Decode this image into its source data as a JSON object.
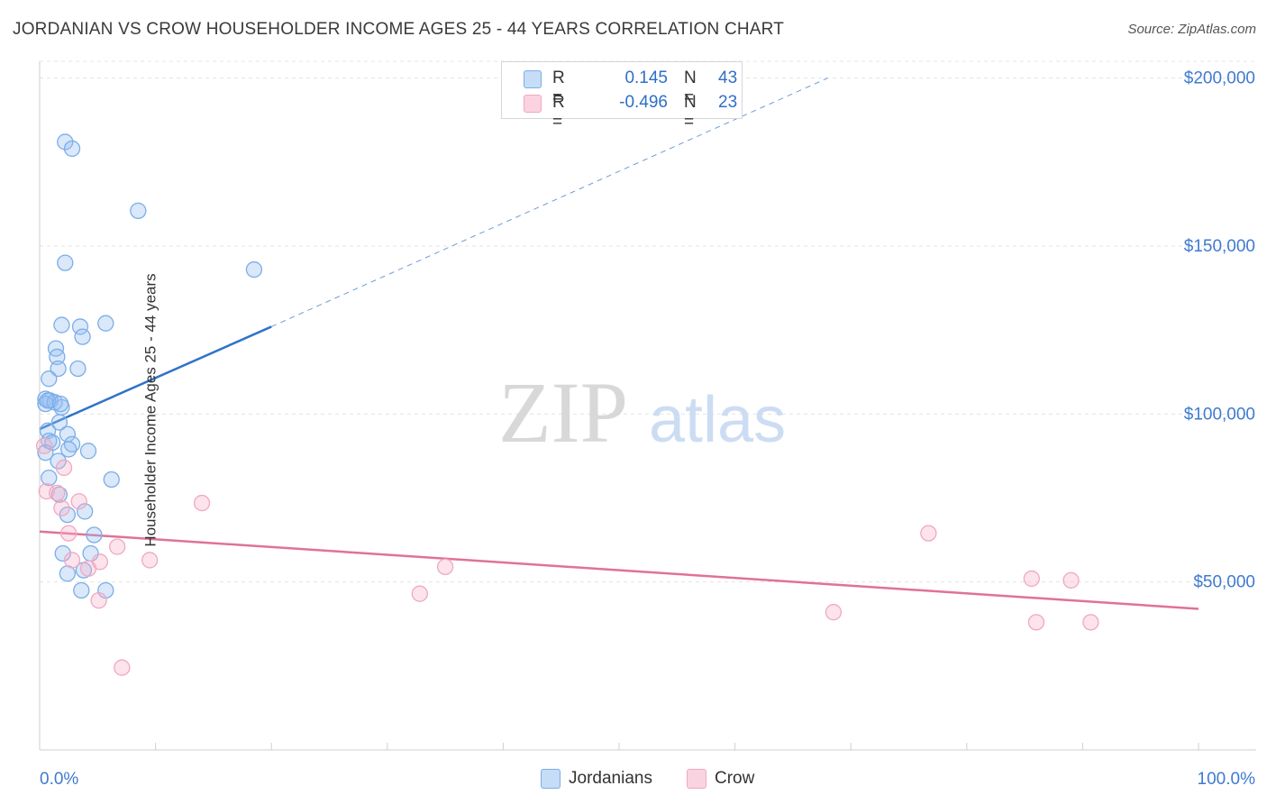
{
  "header": {
    "title": "JORDANIAN VS CROW HOUSEHOLDER INCOME AGES 25 - 44 YEARS CORRELATION CHART",
    "source": "Source: ZipAtlas.com"
  },
  "watermark": {
    "zip": "ZIP",
    "atlas": "atlas"
  },
  "legend_stats": [
    {
      "r_label": "R =",
      "r_value": "0.145",
      "n_label": "N =",
      "n_value": "43",
      "color": "#7aaee8"
    },
    {
      "r_label": "R =",
      "r_value": "-0.496",
      "n_label": "N =",
      "n_value": "23",
      "color": "#f0a8c0"
    }
  ],
  "chart_data": {
    "type": "scatter",
    "title": "JORDANIAN VS CROW HOUSEHOLDER INCOME AGES 25 - 44 YEARS CORRELATION CHART",
    "xlabel": "",
    "ylabel": "Householder Income Ages 25 - 44 years",
    "x_tick_labels": [
      "0.0%",
      "100.0%"
    ],
    "y_tick_labels": [
      "$50,000",
      "$100,000",
      "$150,000",
      "$200,000"
    ],
    "y_ticks": [
      50000,
      100000,
      150000,
      200000
    ],
    "xlim": [
      0,
      100
    ],
    "ylim": [
      0,
      205000
    ],
    "grid": true,
    "legend_position": "bottom",
    "colors": {
      "Jordanians": "#7aaee8",
      "Crow": "#f0a8c0",
      "jordanians_trend": "#2f73c9",
      "crow_trend": "#e0719a",
      "tick_label": "#3f7ad0"
    },
    "series": [
      {
        "name": "Jordanians",
        "points": [
          [
            2.2,
            181000
          ],
          [
            2.8,
            179000
          ],
          [
            8.5,
            160500
          ],
          [
            18.5,
            143000
          ],
          [
            2.2,
            145000
          ],
          [
            1.9,
            126500
          ],
          [
            3.5,
            126000
          ],
          [
            5.7,
            127000
          ],
          [
            3.7,
            123000
          ],
          [
            1.4,
            119500
          ],
          [
            1.5,
            117000
          ],
          [
            1.6,
            113500
          ],
          [
            3.3,
            113500
          ],
          [
            0.8,
            110500
          ],
          [
            0.5,
            104500
          ],
          [
            0.9,
            104000
          ],
          [
            0.5,
            103000
          ],
          [
            1.3,
            103500
          ],
          [
            1.9,
            102000
          ],
          [
            1.7,
            97500
          ],
          [
            0.7,
            95000
          ],
          [
            2.4,
            94000
          ],
          [
            0.8,
            92000
          ],
          [
            2.8,
            91000
          ],
          [
            1.1,
            91500
          ],
          [
            0.5,
            88500
          ],
          [
            2.5,
            89500
          ],
          [
            4.2,
            89000
          ],
          [
            1.6,
            86000
          ],
          [
            0.8,
            81000
          ],
          [
            6.2,
            80500
          ],
          [
            1.7,
            76000
          ],
          [
            3.9,
            71000
          ],
          [
            2.4,
            70000
          ],
          [
            4.7,
            64000
          ],
          [
            2.0,
            58500
          ],
          [
            4.4,
            58500
          ],
          [
            2.4,
            52500
          ],
          [
            3.8,
            53500
          ],
          [
            3.6,
            47500
          ],
          [
            5.7,
            47500
          ],
          [
            0.7,
            104000
          ],
          [
            1.8,
            103000
          ]
        ]
      },
      {
        "name": "Crow",
        "points": [
          [
            0.4,
            90500
          ],
          [
            2.1,
            84000
          ],
          [
            0.6,
            77000
          ],
          [
            1.5,
            76500
          ],
          [
            3.4,
            74000
          ],
          [
            14.0,
            73500
          ],
          [
            1.9,
            72000
          ],
          [
            2.5,
            64500
          ],
          [
            6.7,
            60500
          ],
          [
            2.8,
            56500
          ],
          [
            9.5,
            56500
          ],
          [
            5.2,
            56000
          ],
          [
            4.2,
            54000
          ],
          [
            35.0,
            54500
          ],
          [
            32.8,
            46500
          ],
          [
            5.1,
            44500
          ],
          [
            76.7,
            64500
          ],
          [
            85.6,
            51000
          ],
          [
            89.0,
            50500
          ],
          [
            68.5,
            41000
          ],
          [
            86.0,
            38000
          ],
          [
            90.7,
            38000
          ],
          [
            7.1,
            24500
          ]
        ]
      }
    ],
    "trendlines": [
      {
        "series": "Jordanians",
        "x": [
          0,
          20
        ],
        "y": [
          95500,
          126000
        ],
        "extended_to": [
          68,
          200000
        ],
        "dashed_extension": true
      },
      {
        "series": "Crow",
        "x": [
          0,
          100
        ],
        "y": [
          65000,
          42000
        ]
      }
    ]
  },
  "bottom_legend": [
    {
      "label": "Jordanians",
      "color": "#7aaee8"
    },
    {
      "label": "Crow",
      "color": "#f0a8c0"
    }
  ]
}
